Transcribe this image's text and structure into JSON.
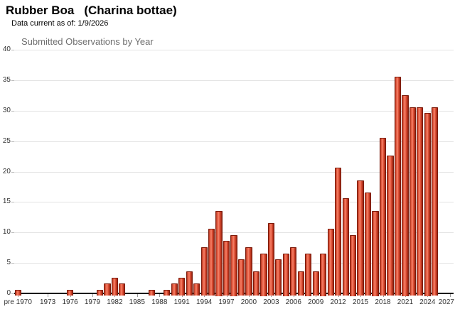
{
  "header": {
    "common_name": "Rubber Boa",
    "scientific_name": "(Charina bottae)",
    "data_current_label": "Data current as of: 1/9/2026"
  },
  "chart_data": {
    "type": "bar",
    "title": "Submitted Observations by Year",
    "xlabel": "",
    "ylabel": "",
    "ylim": [
      0,
      40
    ],
    "ytick_step": 5,
    "grid": true,
    "legend": "none",
    "categories": [
      "pre",
      "1970",
      "1971",
      "1972",
      "1973",
      "1974",
      "1975",
      "1976",
      "1977",
      "1978",
      "1979",
      "1980",
      "1981",
      "1982",
      "1983",
      "1984",
      "1985",
      "1986",
      "1987",
      "1988",
      "1989",
      "1990",
      "1991",
      "1992",
      "1993",
      "1994",
      "1995",
      "1996",
      "1997",
      "1998",
      "1999",
      "2000",
      "2001",
      "2002",
      "2003",
      "2004",
      "2005",
      "2006",
      "2007",
      "2008",
      "2009",
      "2010",
      "2011",
      "2012",
      "2013",
      "2014",
      "2015",
      "2016",
      "2017",
      "2018",
      "2019",
      "2020",
      "2021",
      "2022",
      "2023",
      "2024",
      "2025",
      "2026",
      "2027"
    ],
    "values": [
      1,
      0,
      0,
      0,
      0,
      0,
      0,
      1,
      0,
      0,
      0,
      1,
      2,
      3,
      2,
      0,
      0,
      0,
      1,
      0,
      1,
      2,
      3,
      4,
      2,
      8,
      11,
      14,
      9,
      10,
      6,
      8,
      4,
      7,
      12,
      6,
      7,
      8,
      4,
      7,
      4,
      7,
      11,
      21,
      16,
      10,
      19,
      17,
      14,
      26,
      23,
      36,
      33,
      31,
      31,
      30,
      31,
      0,
      0
    ],
    "x_ticks": [
      {
        "slot": 0,
        "label": "pre 1970"
      },
      {
        "slot": 4,
        "label": "1973"
      },
      {
        "slot": 7,
        "label": "1976"
      },
      {
        "slot": 10,
        "label": "1979"
      },
      {
        "slot": 13,
        "label": "1982"
      },
      {
        "slot": 16,
        "label": "1985"
      },
      {
        "slot": 19,
        "label": "1988"
      },
      {
        "slot": 22,
        "label": "1991"
      },
      {
        "slot": 25,
        "label": "1994"
      },
      {
        "slot": 28,
        "label": "1997"
      },
      {
        "slot": 31,
        "label": "2000"
      },
      {
        "slot": 34,
        "label": "2003"
      },
      {
        "slot": 37,
        "label": "2006"
      },
      {
        "slot": 40,
        "label": "2009"
      },
      {
        "slot": 43,
        "label": "2012"
      },
      {
        "slot": 46,
        "label": "2015"
      },
      {
        "slot": 49,
        "label": "2018"
      },
      {
        "slot": 52,
        "label": "2021"
      },
      {
        "slot": 55,
        "label": "2024"
      },
      {
        "slot": 58,
        "label": "2027"
      }
    ],
    "colors": {
      "bar_fill": "#e2503a",
      "bar_border": "#7c1a0a",
      "gridline": "#e3e3e3",
      "axis_line": "#000000",
      "tick": "#999999",
      "axis_text": "#333333",
      "chart_title_text": "#6e6e6e"
    }
  }
}
